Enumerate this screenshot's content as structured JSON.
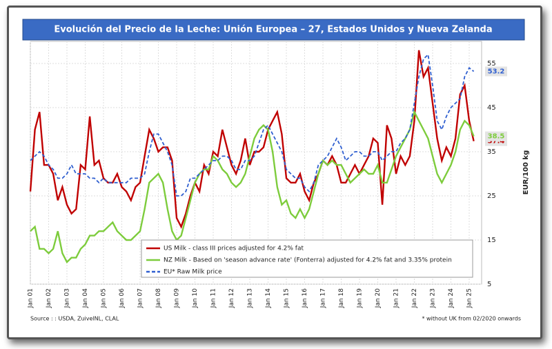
{
  "chart_data": {
    "type": "line",
    "title": "Evolución del Precio de la Leche: Unión Europea – 27, Estados Unidos y Nueva Zelanda",
    "y_axis_label": "EUR/100 kg",
    "source": "Source : : USDA, ZuivelNL, CLAL",
    "footnote": "* without UK from 02/2020 onwards",
    "categories": [
      "Jan 01",
      null,
      null,
      null,
      "Jan 02",
      null,
      null,
      null,
      "Jan 03",
      null,
      null,
      null,
      "Jan 04",
      null,
      null,
      null,
      "Jan 05",
      null,
      null,
      null,
      "Jan 06",
      null,
      null,
      null,
      "Jan 07",
      null,
      null,
      null,
      "Jan 08",
      null,
      null,
      null,
      "Jan 09",
      null,
      null,
      null,
      "Jan 10",
      null,
      null,
      null,
      "Jan 11",
      null,
      null,
      null,
      "Jan 12",
      null,
      null,
      null,
      "Jan 13",
      null,
      null,
      null,
      "Jan 14",
      null,
      null,
      null,
      "Jan 15",
      null,
      null,
      null,
      "Jan 16",
      null,
      null,
      null,
      "Jan 17",
      null,
      null,
      null,
      "Jan 18",
      null,
      null,
      null,
      "Jan 19",
      null,
      null,
      null,
      "Jan 20",
      null,
      null,
      null,
      "Jan 21",
      null,
      null,
      null,
      "Jan 22",
      null,
      null,
      null,
      "Jan 23",
      null,
      null,
      null,
      "Jan 24",
      null,
      null,
      null,
      "Jan 25",
      null
    ],
    "ylim": [
      5,
      60
    ],
    "yticks": [
      5,
      15,
      25,
      35,
      45,
      55
    ],
    "grid": true,
    "series": [
      {
        "name": "US Milk - class III prices adjusted for 4.2% fat",
        "color": "#c00000",
        "dash": false,
        "last_value": 37.4,
        "values": [
          26,
          40,
          44,
          32,
          32,
          30,
          24,
          27,
          23,
          21,
          22,
          32,
          31,
          43,
          32,
          33,
          29,
          28,
          28,
          30,
          27,
          26,
          24,
          27,
          28,
          34,
          40,
          38,
          35,
          36,
          36,
          33,
          20,
          18,
          21,
          25,
          28,
          26,
          32,
          30,
          35,
          34,
          40,
          36,
          32,
          30,
          33,
          38,
          32,
          35,
          35,
          36,
          40,
          42,
          44,
          39,
          29,
          28,
          28,
          30,
          26,
          24,
          28,
          30,
          33,
          32,
          34,
          32,
          28,
          28,
          30,
          32,
          30,
          32,
          34,
          38,
          37,
          23,
          41,
          38,
          30,
          34,
          32,
          34,
          42,
          58,
          52,
          54,
          46,
          38,
          33,
          36,
          34,
          38,
          48,
          50,
          42,
          37.4
        ]
      },
      {
        "name": "NZ Milk - Based on 'season advance rate' (Fonterra) adjusted for 4.2% fat and 3.35% protein",
        "color": "#7dcc3c",
        "dash": false,
        "last_value": 38.5,
        "values": [
          17,
          18,
          13,
          13,
          12,
          13,
          17,
          12,
          10,
          11,
          11,
          13,
          14,
          16,
          16,
          17,
          17,
          18,
          19,
          17,
          16,
          15,
          15,
          16,
          17,
          22,
          28,
          29,
          30,
          28,
          22,
          17,
          15,
          16,
          20,
          24,
          28,
          30,
          31,
          31,
          34,
          33,
          31,
          30,
          28,
          27,
          28,
          30,
          34,
          38,
          40,
          41,
          40,
          35,
          27,
          23,
          24,
          21,
          20,
          22,
          20,
          22,
          26,
          30,
          33,
          32,
          33,
          32,
          32,
          30,
          28,
          29,
          30,
          31,
          30,
          30,
          32,
          28,
          28,
          31,
          34,
          36,
          38,
          40,
          44,
          42,
          40,
          38,
          34,
          30,
          28,
          30,
          32,
          35,
          40,
          42,
          41,
          38.5
        ]
      },
      {
        "name": "EU* Raw Milk price",
        "color": "#2f5fd0",
        "dash": true,
        "last_value": 53.2,
        "values": [
          33,
          34,
          35,
          34,
          32,
          31,
          29,
          29,
          30,
          32,
          30,
          30,
          30,
          29,
          29,
          28,
          29,
          28,
          28,
          28,
          28,
          28,
          29,
          29,
          29,
          30,
          35,
          39,
          39,
          37,
          35,
          32,
          25,
          25,
          26,
          29,
          29,
          30,
          31,
          32,
          33,
          33,
          34,
          34,
          33,
          31,
          31,
          33,
          33,
          34,
          37,
          40,
          41,
          39,
          37,
          35,
          31,
          30,
          29,
          29,
          27,
          26,
          28,
          32,
          33,
          34,
          36,
          38,
          36,
          33,
          34,
          35,
          35,
          34,
          34,
          35,
          35,
          33,
          34,
          35,
          35,
          37,
          38,
          40,
          46,
          52,
          56,
          57,
          50,
          42,
          40,
          43,
          45,
          46,
          47,
          52,
          54,
          53.2
        ]
      }
    ]
  }
}
